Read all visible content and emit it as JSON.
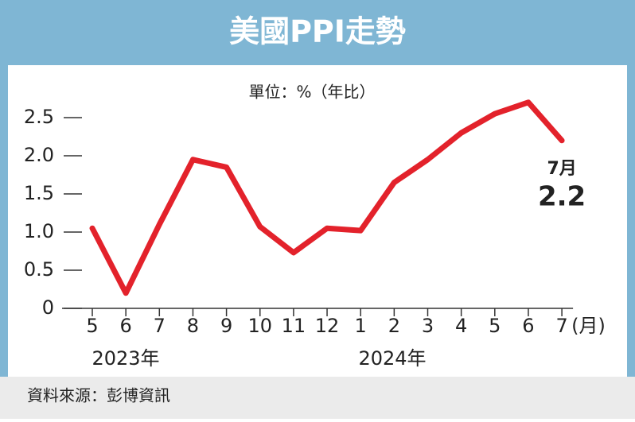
{
  "chart_data": {
    "type": "line",
    "title": "美國PPI走勢",
    "unit_label": "單位：%（年比）",
    "categories": [
      "5",
      "6",
      "7",
      "8",
      "9",
      "10",
      "11",
      "12",
      "1",
      "2",
      "3",
      "4",
      "5",
      "6",
      "7"
    ],
    "x_unit": "(月)",
    "year_labels": [
      "2023年",
      "2024年"
    ],
    "values": [
      1.05,
      0.2,
      1.1,
      1.95,
      1.85,
      1.07,
      0.73,
      1.05,
      1.02,
      1.65,
      1.95,
      2.3,
      2.55,
      2.7,
      2.2
    ],
    "value_labels": [
      null,
      null,
      null,
      null,
      null,
      null,
      null,
      null,
      null,
      null,
      null,
      null,
      null,
      null,
      "2.2"
    ],
    "annotation": "7月",
    "color": "#e3222b",
    "ylim": [
      0,
      2.5
    ],
    "yticks": [
      0,
      0.5,
      {
        "value": 1,
        "label": "1.0"
      },
      1.5,
      {
        "value": 2,
        "label": "2.0"
      },
      2.5
    ],
    "grid": false,
    "source": "資料來源：彭博資訊"
  }
}
